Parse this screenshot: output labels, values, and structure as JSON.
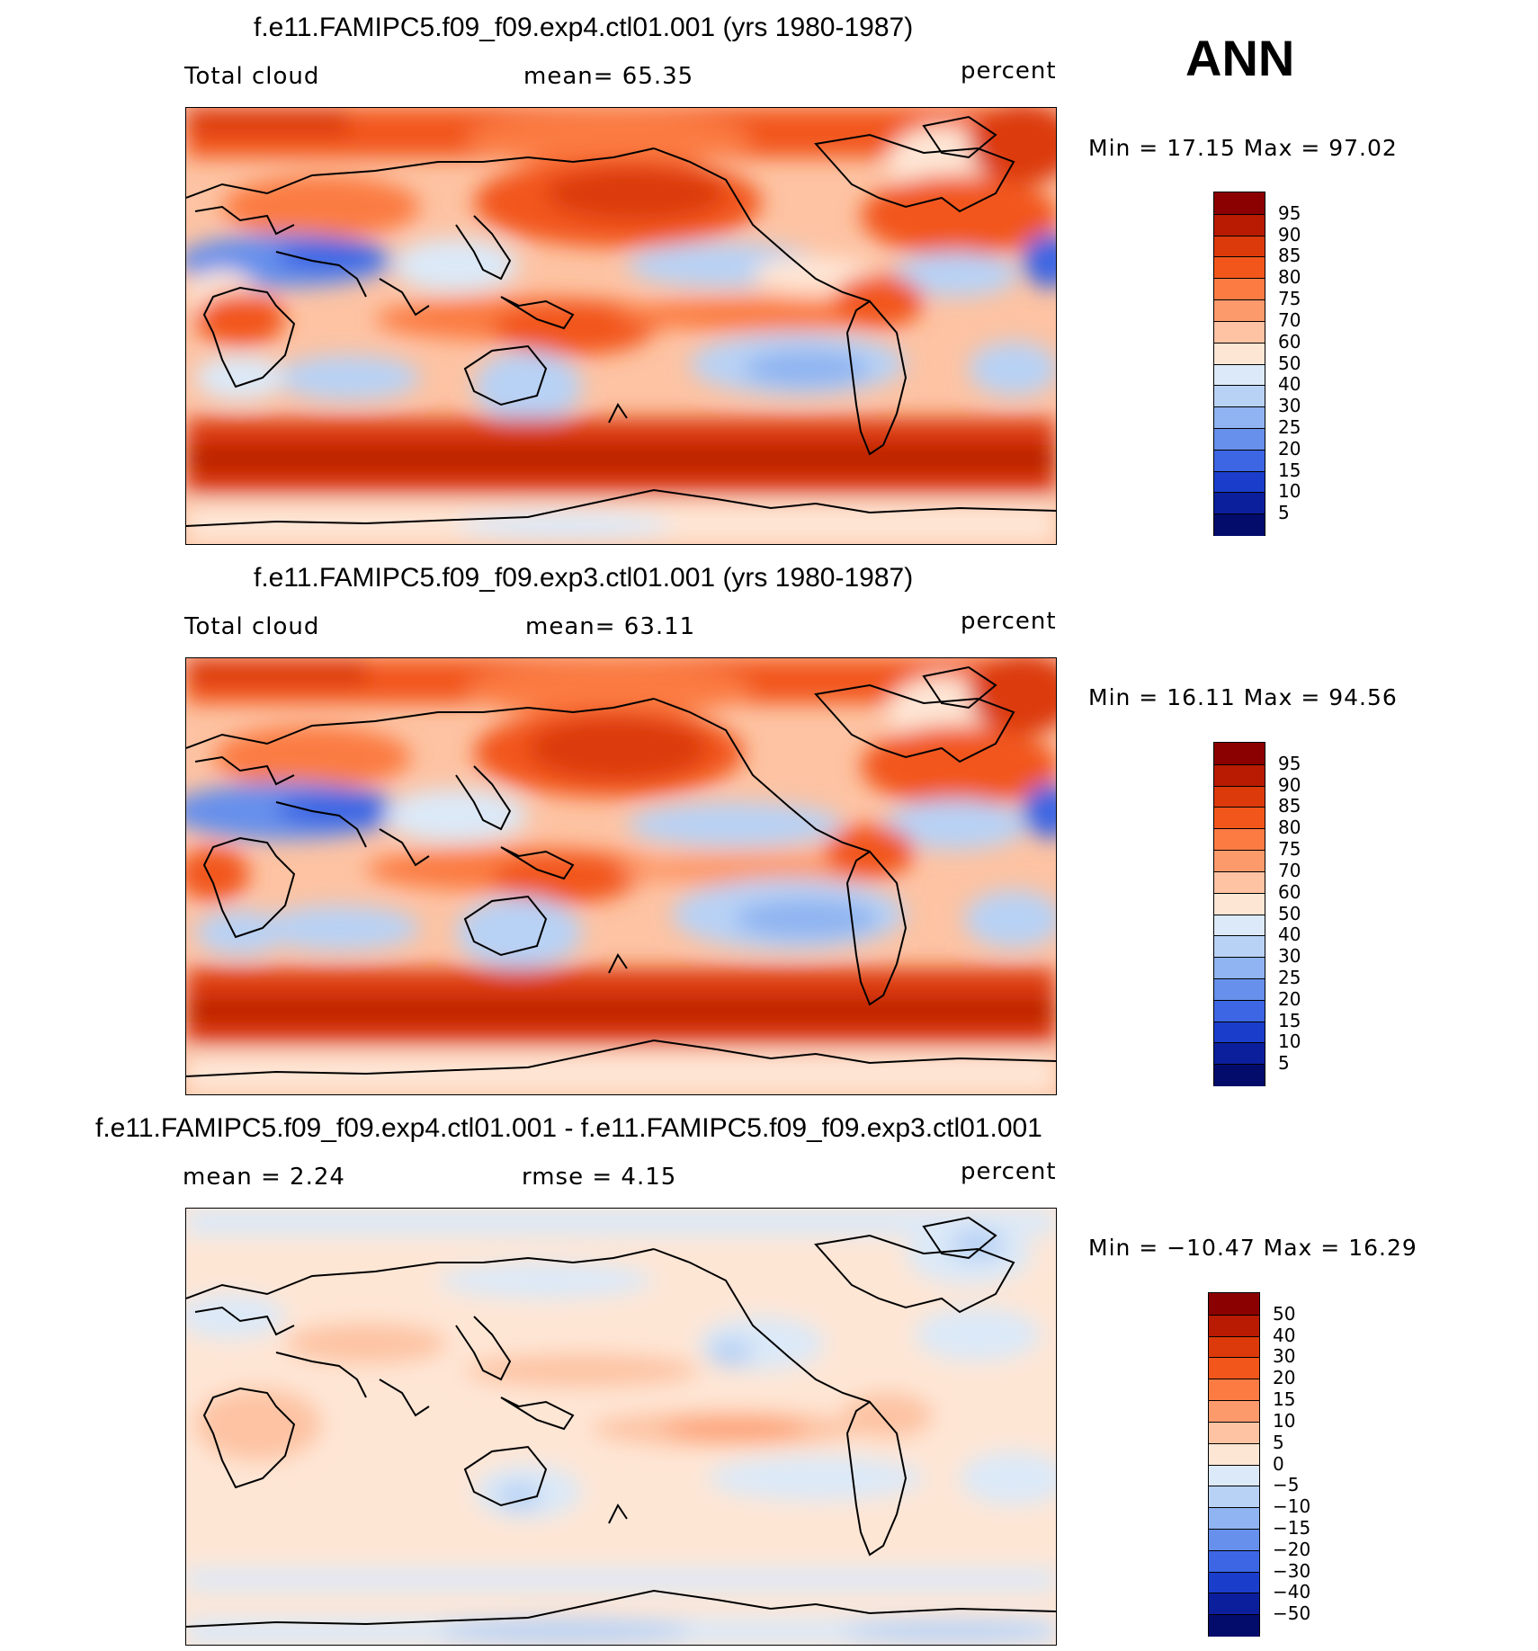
{
  "season": "ANN",
  "panels": [
    {
      "title": "f.e11.FAMIPC5.f09_f09.exp4.ctl01.001 (yrs 1980-1987)",
      "left": "Total cloud",
      "mid": "mean=   65.35",
      "units": "percent",
      "minmax": "Min =   17.15 Max =   97.02",
      "colorbar": {
        "labels": [
          "95",
          "90",
          "85",
          "80",
          "75",
          "70",
          "60",
          "50",
          "40",
          "30",
          "25",
          "20",
          "15",
          "10",
          "5"
        ],
        "colors": [
          "#8b0000",
          "#b81a02",
          "#dc3a0b",
          "#f2561b",
          "#fb7b43",
          "#fd9a6c",
          "#fdc3a3",
          "#fee6d5",
          "#dbe9f8",
          "#b8d2f5",
          "#8fb4f1",
          "#6690ec",
          "#3c66e3",
          "#1a3ecb",
          "#0b1f9d",
          "#030b6b"
        ]
      }
    },
    {
      "title": "f.e11.FAMIPC5.f09_f09.exp3.ctl01.001 (yrs 1980-1987)",
      "left": "Total cloud",
      "mid": "mean=   63.11",
      "units": "percent",
      "minmax": "Min =   16.11 Max =   94.56",
      "colorbar": {
        "labels": [
          "95",
          "90",
          "85",
          "80",
          "75",
          "70",
          "60",
          "50",
          "40",
          "30",
          "25",
          "20",
          "15",
          "10",
          "5"
        ],
        "colors": [
          "#8b0000",
          "#b81a02",
          "#dc3a0b",
          "#f2561b",
          "#fb7b43",
          "#fd9a6c",
          "#fdc3a3",
          "#fee6d5",
          "#dbe9f8",
          "#b8d2f5",
          "#8fb4f1",
          "#6690ec",
          "#3c66e3",
          "#1a3ecb",
          "#0b1f9d",
          "#030b6b"
        ]
      }
    },
    {
      "title": "f.e11.FAMIPC5.f09_f09.exp4.ctl01.001 - f.e11.FAMIPC5.f09_f09.exp3.ctl01.001",
      "left": "mean =     2.24",
      "mid": "rmse =     4.15",
      "units": "percent",
      "minmax": "Min = −10.47 Max =   16.29",
      "colorbar": {
        "labels": [
          "50",
          "40",
          "30",
          "20",
          "15",
          "10",
          "5",
          "0",
          "−5",
          "−10",
          "−15",
          "−20",
          "−30",
          "−40",
          "−50"
        ],
        "colors": [
          "#8b0000",
          "#b81a02",
          "#dc3a0b",
          "#f2561b",
          "#fb7b43",
          "#fd9a6c",
          "#fdc3a3",
          "#fee6d5",
          "#dbe9f8",
          "#b8d2f5",
          "#8fb4f1",
          "#6690ec",
          "#3c66e3",
          "#1a3ecb",
          "#0b1f9d",
          "#030b6b"
        ]
      }
    }
  ]
}
